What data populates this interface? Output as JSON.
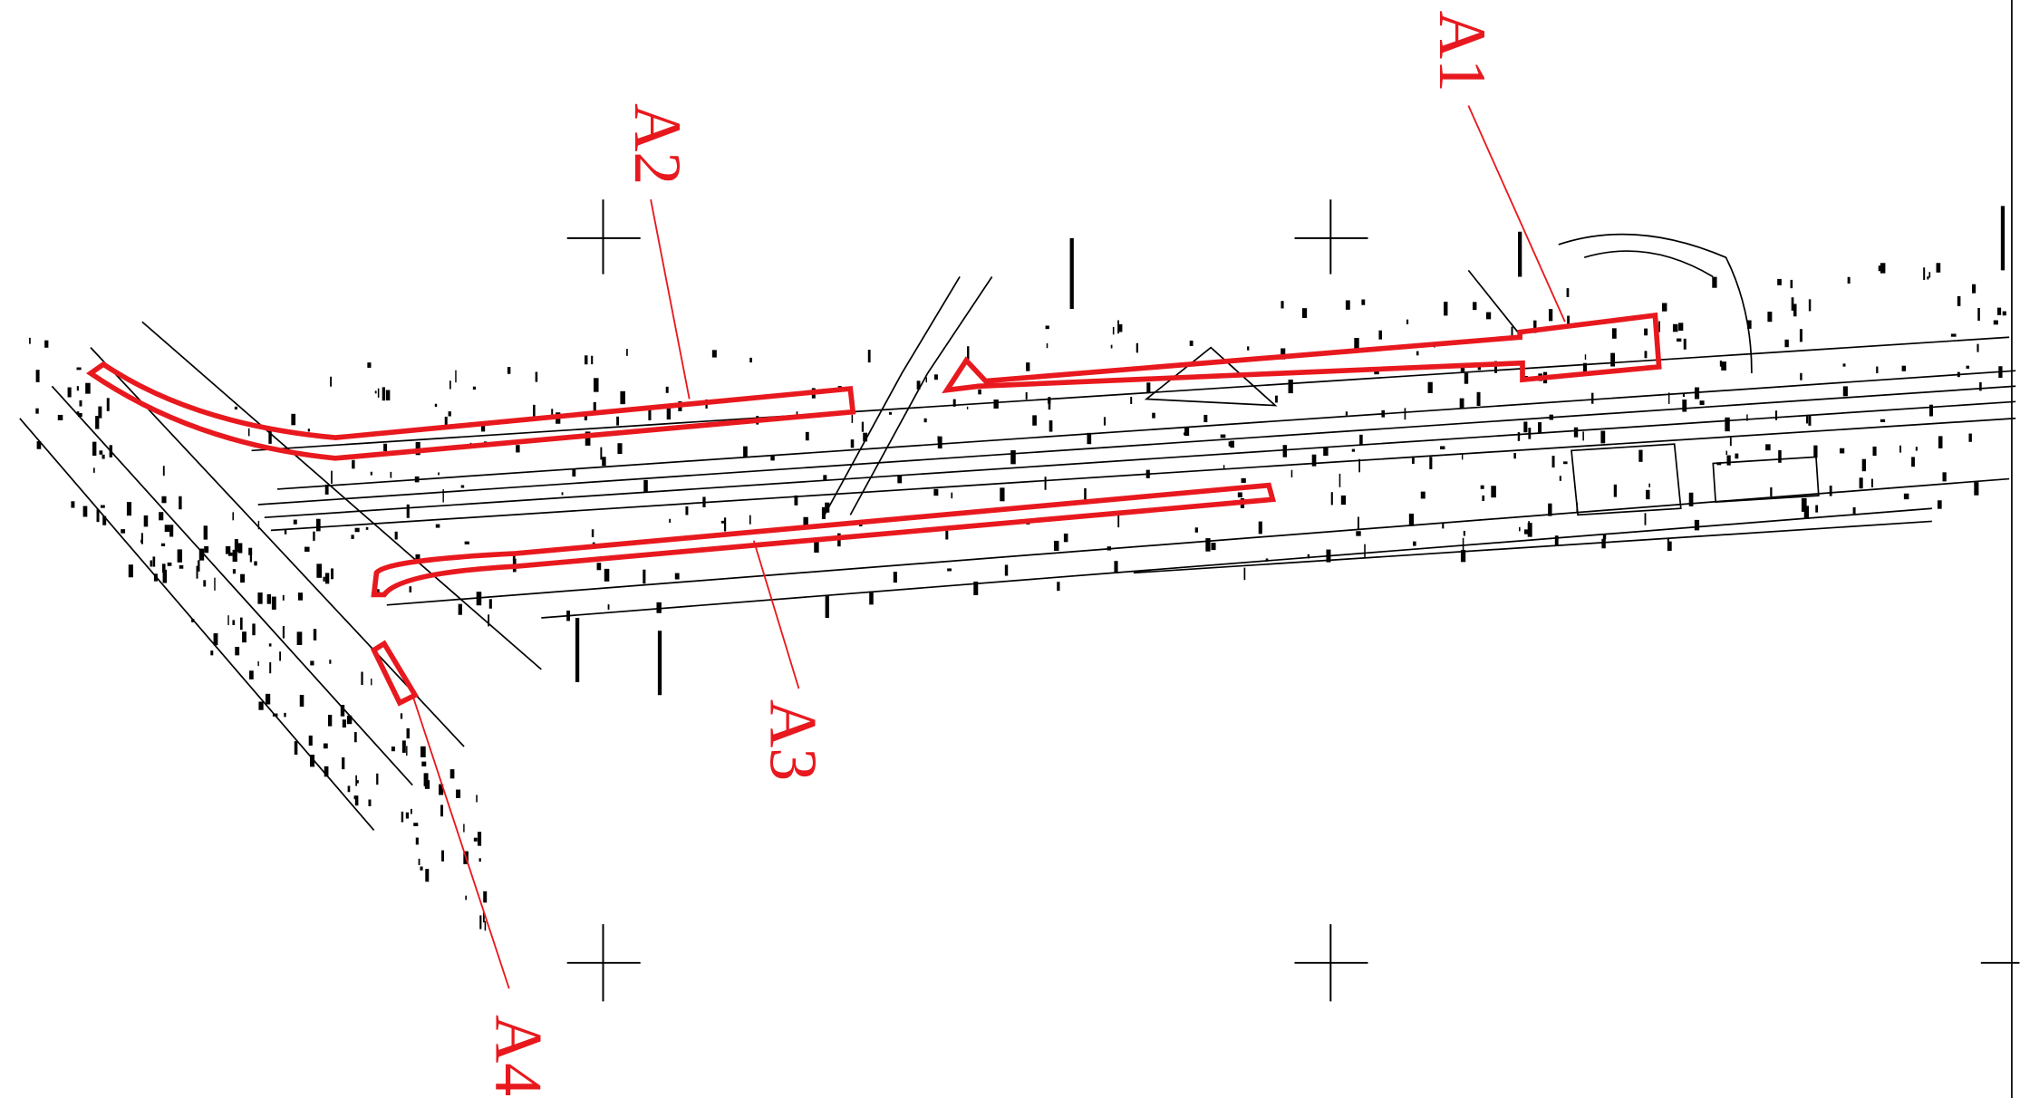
{
  "areas": [
    {
      "label": "A1"
    },
    {
      "label": "A2"
    },
    {
      "label": "A3"
    },
    {
      "label": "A4"
    }
  ]
}
